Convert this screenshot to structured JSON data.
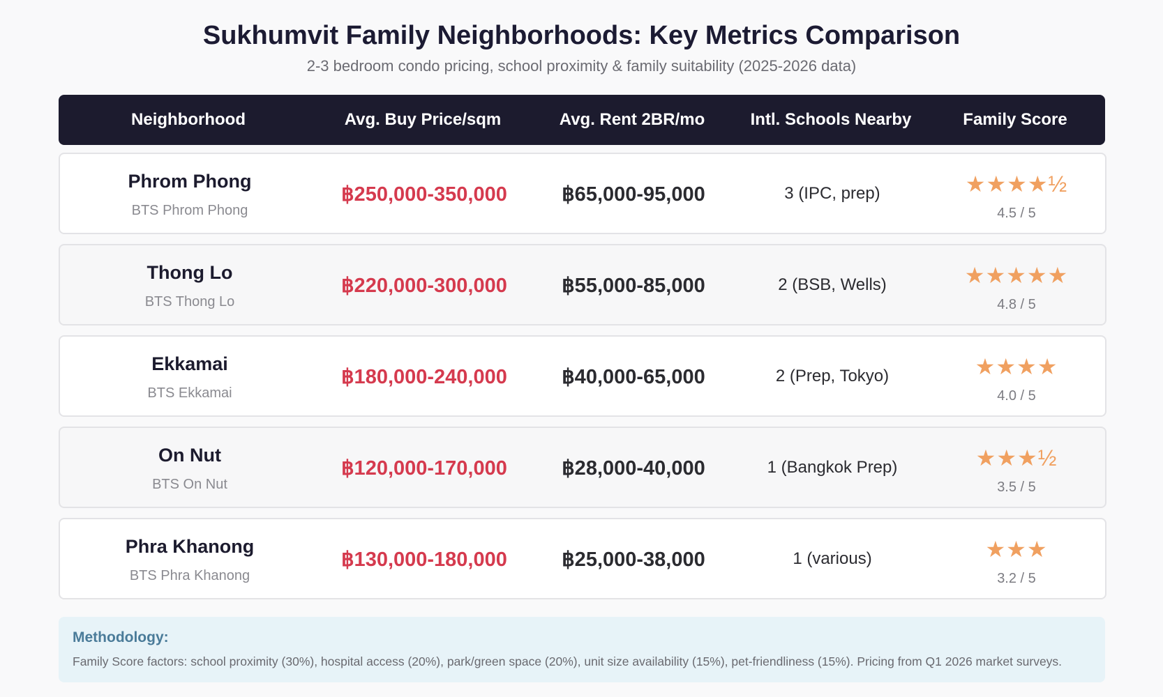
{
  "title": "Sukhumvit Family Neighborhoods: Key Metrics Comparison",
  "subtitle": "2-3 bedroom condo pricing, school proximity & family suitability (2025-2026 data)",
  "header": {
    "neighborhood": "Neighborhood",
    "buy_price": "Avg. Buy Price/sqm",
    "rent": "Avg. Rent 2BR/mo",
    "schools": "Intl. Schools Nearby",
    "score": "Family Score"
  },
  "colors": {
    "header_bg": "#1c1b2e",
    "price": "#d53a4e",
    "stars": "#f0a060",
    "methodology_bg": "#e7f3f8",
    "methodology_title": "#4a7b99"
  },
  "chart_data": {
    "type": "table",
    "title": "Sukhumvit Family Neighborhoods: Key Metrics Comparison",
    "subtitle": "2-3 bedroom condo pricing, school proximity & family suitability (2025-2026 data)",
    "columns": [
      "Neighborhood",
      "Avg. Buy Price/sqm",
      "Avg. Rent 2BR/mo",
      "Intl. Schools Nearby",
      "Family Score"
    ],
    "rows": [
      {
        "name": "Phrom Phong",
        "station": "BTS Phrom Phong",
        "price": "฿250,000-350,000",
        "rent": "฿65,000-95,000",
        "schools": "3 (IPC, prep)",
        "stars": "★★★★½",
        "score_value": 4.5,
        "score_text": "4.5 / 5"
      },
      {
        "name": "Thong Lo",
        "station": "BTS Thong Lo",
        "price": "฿220,000-300,000",
        "rent": "฿55,000-85,000",
        "schools": "2 (BSB, Wells)",
        "stars": "★★★★★",
        "score_value": 4.8,
        "score_text": "4.8 / 5"
      },
      {
        "name": "Ekkamai",
        "station": "BTS Ekkamai",
        "price": "฿180,000-240,000",
        "rent": "฿40,000-65,000",
        "schools": "2 (Prep, Tokyo)",
        "stars": "★★★★",
        "score_value": 4.0,
        "score_text": "4.0 / 5"
      },
      {
        "name": "On Nut",
        "station": "BTS On Nut",
        "price": "฿120,000-170,000",
        "rent": "฿28,000-40,000",
        "schools": "1 (Bangkok Prep)",
        "stars": "★★★½",
        "score_value": 3.5,
        "score_text": "3.5 / 5"
      },
      {
        "name": "Phra Khanong",
        "station": "BTS Phra Khanong",
        "price": "฿130,000-180,000",
        "rent": "฿25,000-38,000",
        "schools": "1 (various)",
        "stars": "★★★",
        "score_value": 3.2,
        "score_text": "3.2 / 5"
      }
    ]
  },
  "methodology": {
    "title": "Methodology:",
    "text": "Family Score factors: school proximity (30%), hospital access (20%), park/green space (20%), unit size availability (15%), pet-friendliness (15%). Pricing from Q1 2026 market surveys."
  }
}
